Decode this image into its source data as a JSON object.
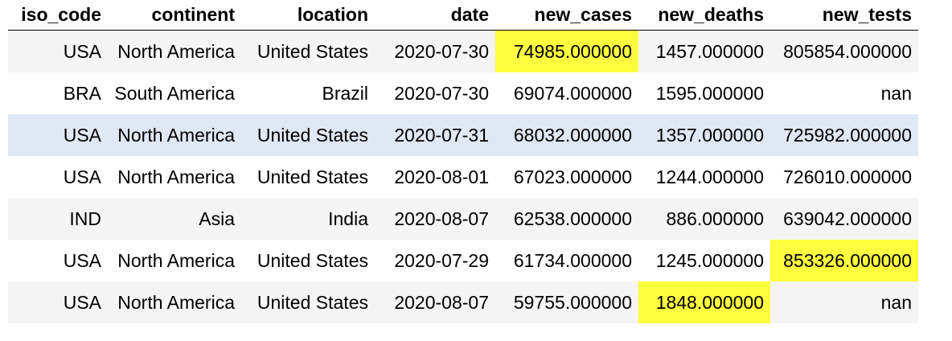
{
  "table": {
    "columns": [
      "iso_code",
      "continent",
      "location",
      "date",
      "new_cases",
      "new_deaths",
      "new_tests"
    ],
    "rows": [
      [
        "USA",
        "North America",
        "United States",
        "2020-07-30",
        "74985.000000",
        "1457.000000",
        "805854.000000"
      ],
      [
        "BRA",
        "South America",
        "Brazil",
        "2020-07-30",
        "69074.000000",
        "1595.000000",
        "nan"
      ],
      [
        "USA",
        "North America",
        "United States",
        "2020-07-31",
        "68032.000000",
        "1357.000000",
        "725982.000000"
      ],
      [
        "USA",
        "North America",
        "United States",
        "2020-08-01",
        "67023.000000",
        "1244.000000",
        "726010.000000"
      ],
      [
        "IND",
        "Asia",
        "India",
        "2020-08-07",
        "62538.000000",
        "886.000000",
        "639042.000000"
      ],
      [
        "USA",
        "North America",
        "United States",
        "2020-07-29",
        "61734.000000",
        "1245.000000",
        "853326.000000"
      ],
      [
        "USA",
        "North America",
        "United States",
        "2020-08-07",
        "59755.000000",
        "1848.000000",
        "nan"
      ]
    ],
    "highlight_color": "#ffff3f",
    "hover_color": "#dfe8f5",
    "stripe_color": "#f5f5f5"
  }
}
